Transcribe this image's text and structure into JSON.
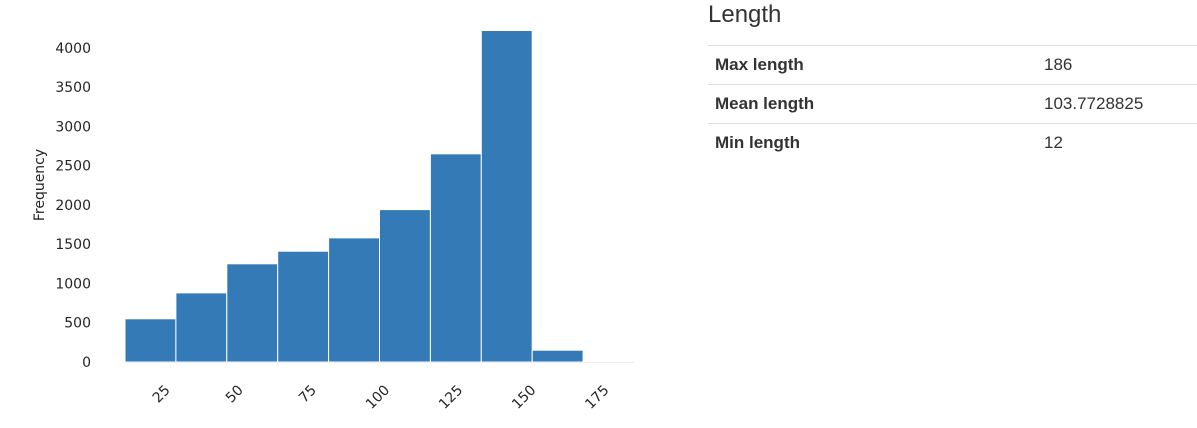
{
  "stats": {
    "title": "Length",
    "rows": [
      {
        "label": "Max length",
        "value": "186"
      },
      {
        "label": "Mean length",
        "value": "103.7728825"
      },
      {
        "label": "Min length",
        "value": "12"
      }
    ]
  },
  "colors": {
    "bar_fill": "#337ab7",
    "bar_edge": "#ffffff",
    "axis_text": "#262626",
    "table_border": "#dddddd"
  },
  "chart_data": {
    "type": "bar",
    "histogram": true,
    "bins": [
      {
        "start": 12.0,
        "end": 29.4,
        "value": 550
      },
      {
        "start": 29.4,
        "end": 46.8,
        "value": 880
      },
      {
        "start": 46.8,
        "end": 64.2,
        "value": 1250
      },
      {
        "start": 64.2,
        "end": 81.6,
        "value": 1410
      },
      {
        "start": 81.6,
        "end": 99.0,
        "value": 1580
      },
      {
        "start": 99.0,
        "end": 116.4,
        "value": 1940
      },
      {
        "start": 116.4,
        "end": 133.8,
        "value": 2650
      },
      {
        "start": 133.8,
        "end": 151.2,
        "value": 4220
      },
      {
        "start": 151.2,
        "end": 168.6,
        "value": 150
      },
      {
        "start": 168.6,
        "end": 186.0,
        "value": 8
      }
    ],
    "xticks": [
      25,
      50,
      75,
      100,
      125,
      150,
      175
    ],
    "yticks": [
      0,
      500,
      1000,
      1500,
      2000,
      2500,
      3000,
      3500,
      4000
    ],
    "xlim": [
      12,
      186
    ],
    "ylim": [
      0,
      4430
    ],
    "xlabel": "",
    "ylabel": "Frequency",
    "grid": false
  }
}
